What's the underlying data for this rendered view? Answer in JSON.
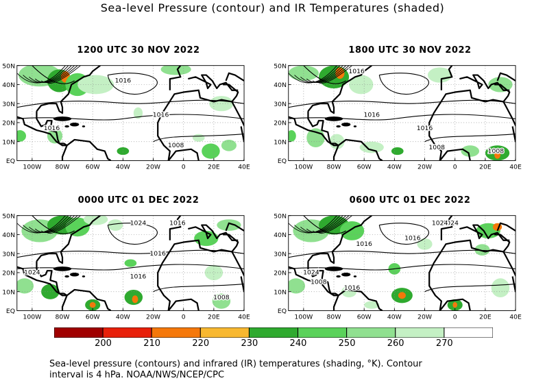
{
  "title": "Sea-level Pressure (contour) and IR Temperatures (shaded)",
  "lat_labels": [
    "50N",
    "40N",
    "30N",
    "20N",
    "10N",
    "EQ"
  ],
  "lon_labels": [
    "100W",
    "80W",
    "60W",
    "40W",
    "20W",
    "0",
    "20E",
    "40E"
  ],
  "panels": [
    {
      "title": "1200 UTC 30 NOV 2022",
      "contour_labels": [
        "1016",
        "1016",
        "1016",
        "1008"
      ]
    },
    {
      "title": "1800 UTC 30 NOV 2022",
      "contour_labels": [
        "1016",
        "1016",
        "1016",
        "1008",
        "1008"
      ]
    },
    {
      "title": "0000 UTC 01 DEC 2022",
      "contour_labels": [
        "1024",
        "1016",
        "1024",
        "1016",
        "1016",
        "1008"
      ]
    },
    {
      "title": "0600 UTC 01 DEC 2022",
      "contour_labels": [
        "1024",
        "1016",
        "1024",
        "1024",
        "1016",
        "1016",
        "1008"
      ]
    }
  ],
  "colorbar": {
    "labels": [
      "200",
      "210",
      "220",
      "230",
      "240",
      "250",
      "260",
      "270"
    ],
    "colors": [
      "#a00000",
      "#e8200a",
      "#f5780a",
      "#f8b830",
      "#2faa2f",
      "#5ad25a",
      "#90e090",
      "#c4f0c4",
      "#ffffff"
    ]
  },
  "caption": {
    "line1": "Sea-level pressure (contours) and infrared (IR) temperatures (shading, °K). Contour",
    "line2": "interval is 4 hPa. NOAA/NWS/NCEP/CPC"
  }
}
